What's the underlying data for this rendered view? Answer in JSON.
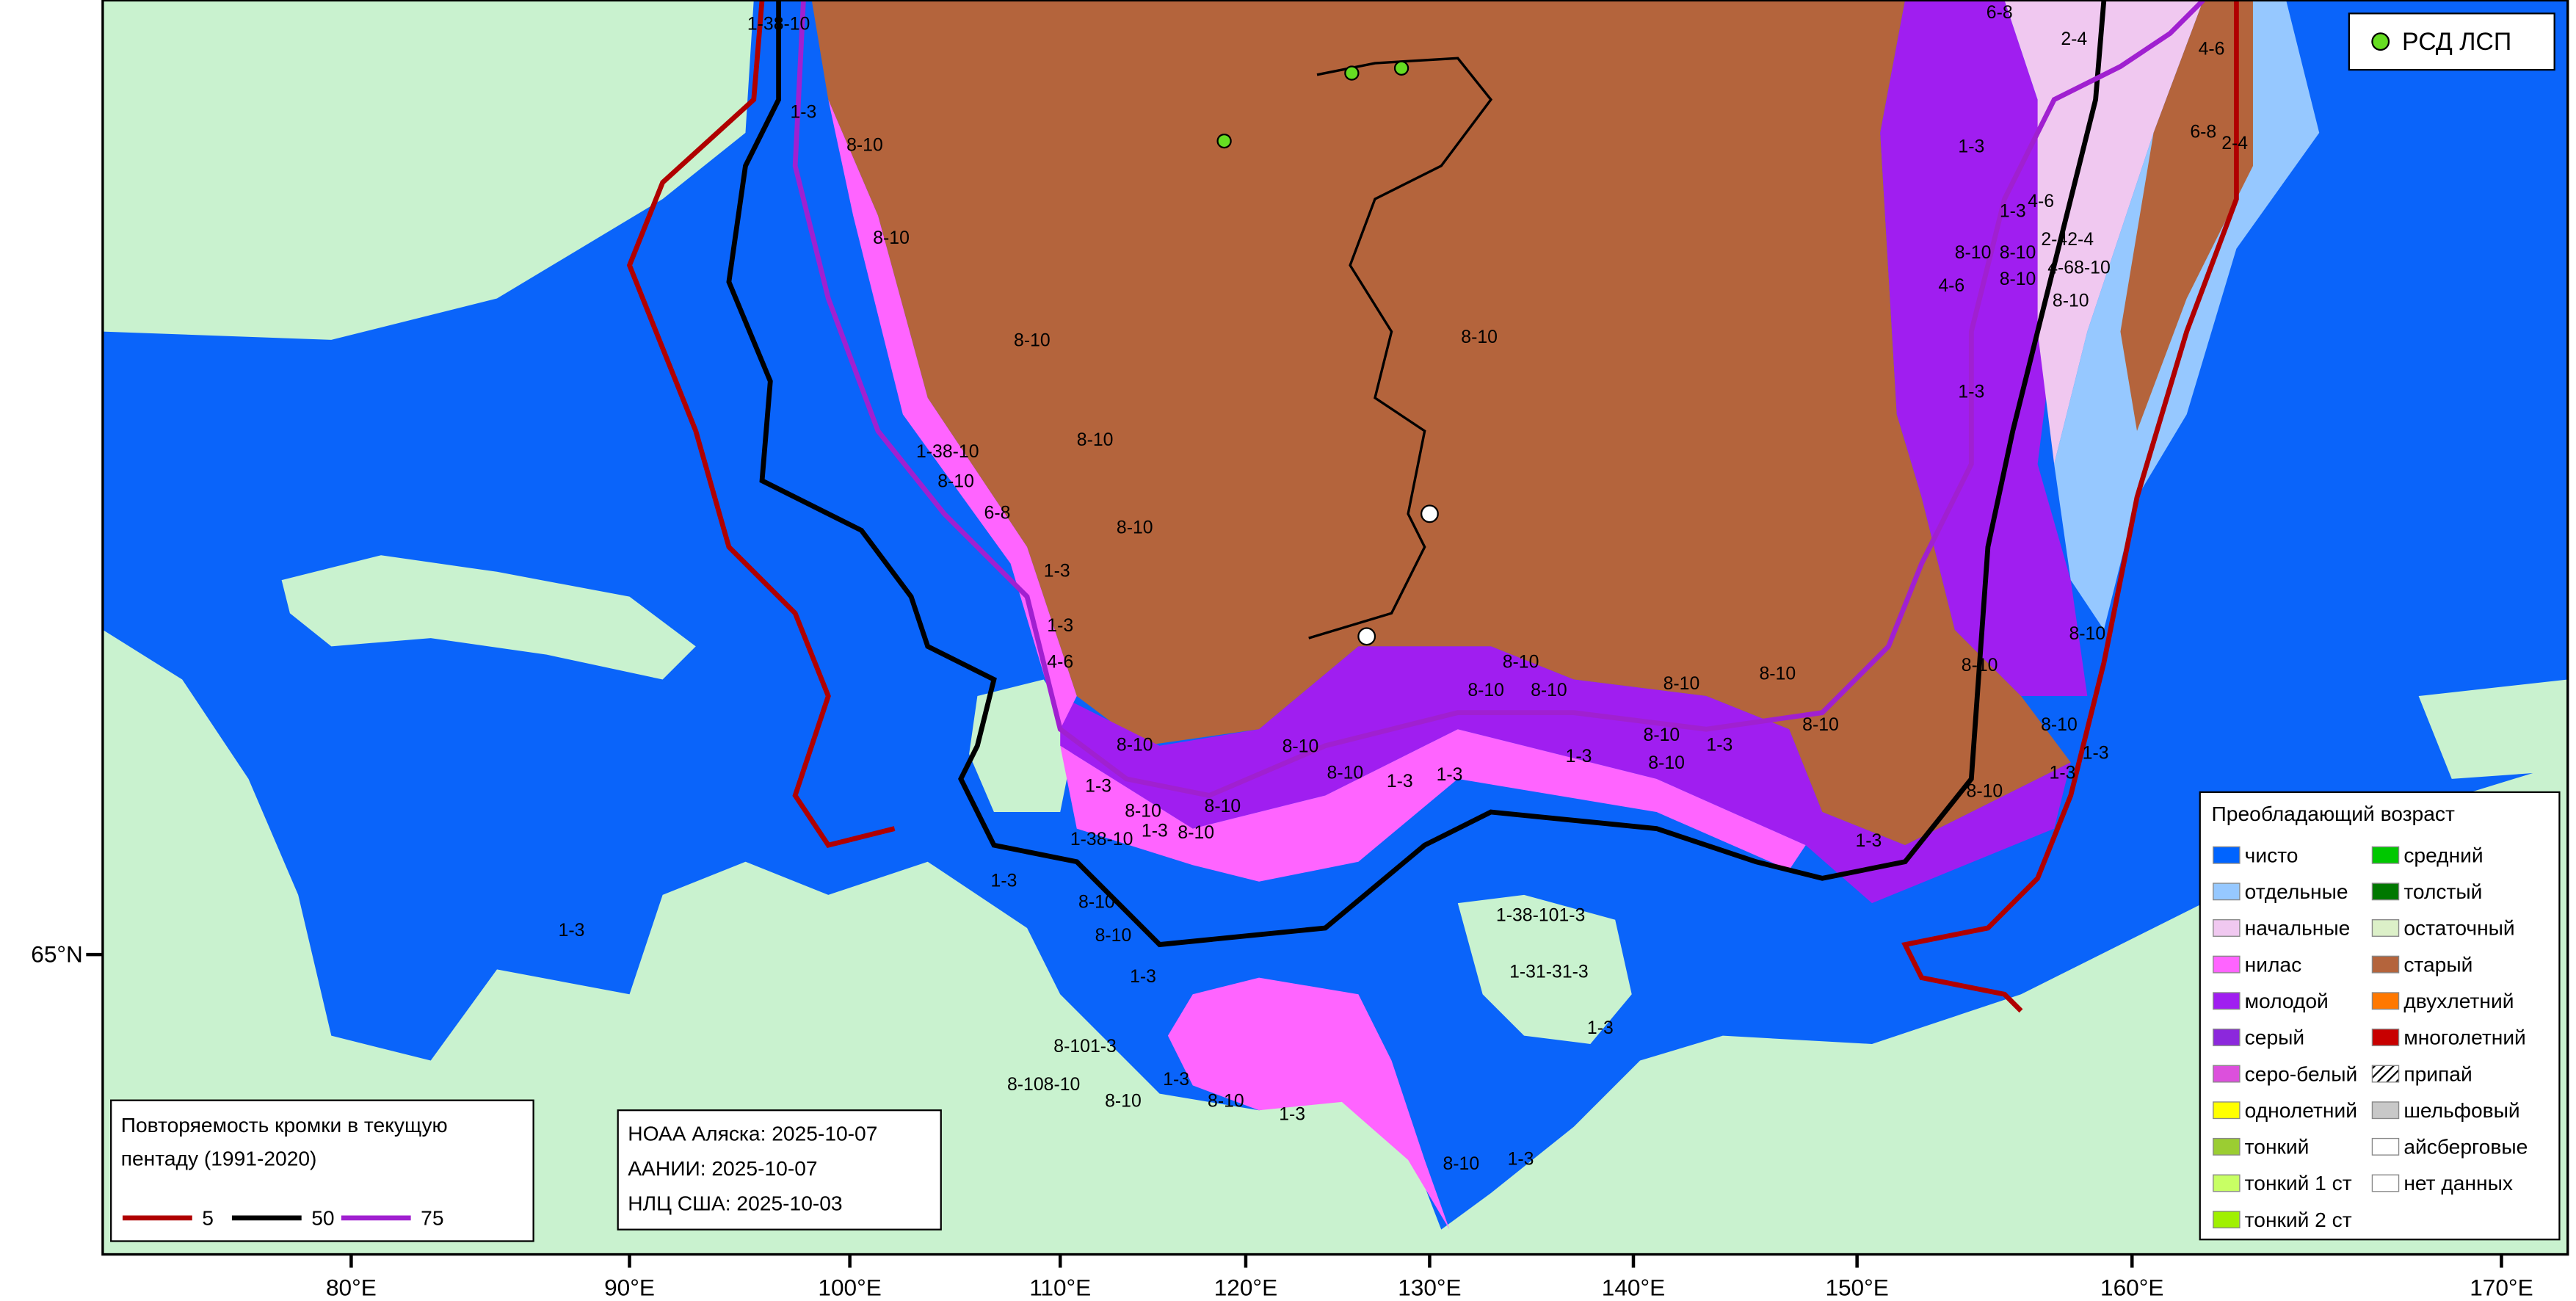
{
  "map": {
    "lon_labels": [
      "80°E",
      "90°E",
      "100°E",
      "110°E",
      "120°E",
      "130°E",
      "140°E",
      "150°E",
      "160°E",
      "170°E"
    ],
    "lat_labels": [
      "65°N"
    ],
    "ice_labels": [
      "1-38-10",
      "1-3",
      "8-10",
      "8-10",
      "8-10",
      "8-10",
      "1-38-10",
      "8-10",
      "6-8",
      "1-3",
      "1-3",
      "4-6",
      "8-10",
      "8-10",
      "1-3",
      "1-3",
      "4-6",
      "8-10",
      "8-10",
      "2-42-4",
      "4-68-10",
      "4-6",
      "8-10",
      "8-10",
      "1-3",
      "6-8",
      "2-4",
      "4-6",
      "6-8",
      "2-4",
      "8-10",
      "8-10",
      "8-10",
      "1-3",
      "1-3",
      "8-10",
      "1-3",
      "8-10",
      "8-10",
      "8-10",
      "8-10",
      "8-10",
      "1-3",
      "1-3",
      "8-10",
      "8-10",
      "8-10",
      "8-10",
      "8-10",
      "1-3",
      "1-3",
      "8-10",
      "8-10",
      "8-10",
      "1-3",
      "1-38-10",
      "8-10",
      "1-3",
      "1-3",
      "8-10",
      "8-10",
      "1-3",
      "1-38-101-3",
      "1-31-31-3",
      "1-3",
      "8-108-10",
      "8-101-3",
      "8-10",
      "1-3",
      "8-10",
      "1-3",
      "8-10",
      "1-3",
      "1-3"
    ],
    "station_legend": {
      "label": "РСД ЛСП",
      "color": "#66dd22"
    },
    "age_legend": {
      "title": "Преобладающий возраст",
      "items": [
        {
          "label": "чисто",
          "color": "#0064ff"
        },
        {
          "label": "отдельные",
          "color": "#96c8ff"
        },
        {
          "label": "начальные",
          "color": "#f0c8f0"
        },
        {
          "label": "нилас",
          "color": "#ff64ff"
        },
        {
          "label": "молодой",
          "color": "#a01ef0"
        },
        {
          "label": "серый",
          "color": "#8c28dc"
        },
        {
          "label": "серо-белый",
          "color": "#dc50dc"
        },
        {
          "label": "однолетний",
          "color": "#ffff00"
        },
        {
          "label": "тонкий",
          "color": "#9bcd32"
        },
        {
          "label": "тонкий 1 ст",
          "color": "#c8ff64"
        },
        {
          "label": "тонкий 2 ст",
          "color": "#a0f000"
        },
        {
          "label": "средний",
          "color": "#00c800"
        },
        {
          "label": "толстый",
          "color": "#007800"
        },
        {
          "label": "остаточный",
          "color": "#dcf0c8"
        },
        {
          "label": "старый",
          "color": "#b4643c"
        },
        {
          "label": "двухлетний",
          "color": "#ff7800"
        },
        {
          "label": "многолетний",
          "color": "#c80000"
        },
        {
          "label": "припай",
          "color": "hatch"
        },
        {
          "label": "шельфовый",
          "color": "#c8c8c8"
        },
        {
          "label": "айсберговые",
          "color": "#ffffff"
        },
        {
          "label": "нет данных",
          "color": "#ffffff"
        }
      ]
    },
    "edge_legend": {
      "title_lines": [
        "Повторяемость кромки в текущую",
        "пентаду (1991-2020)"
      ],
      "items": [
        {
          "label": "5",
          "color": "#b00000"
        },
        {
          "label": "50",
          "color": "#000000"
        },
        {
          "label": "75",
          "color": "#a020d0"
        }
      ]
    },
    "sources": [
      "НОАА Аляска: 2025-10-07",
      "ААНИИ: 2025-10-07",
      "НЛЦ США: 2025-10-03"
    ]
  }
}
